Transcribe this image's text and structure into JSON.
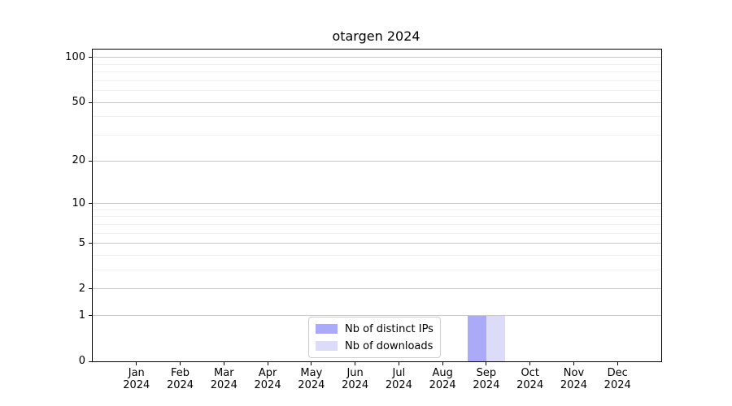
{
  "figure": {
    "background": "#ffffff"
  },
  "chart_data": {
    "type": "bar",
    "title": "otargen 2024",
    "x_categories": [
      {
        "month": "Jan",
        "year": "2024"
      },
      {
        "month": "Feb",
        "year": "2024"
      },
      {
        "month": "Mar",
        "year": "2024"
      },
      {
        "month": "Apr",
        "year": "2024"
      },
      {
        "month": "May",
        "year": "2024"
      },
      {
        "month": "Jun",
        "year": "2024"
      },
      {
        "month": "Jul",
        "year": "2024"
      },
      {
        "month": "Aug",
        "year": "2024"
      },
      {
        "month": "Sep",
        "year": "2024"
      },
      {
        "month": "Oct",
        "year": "2024"
      },
      {
        "month": "Nov",
        "year": "2024"
      },
      {
        "month": "Dec",
        "year": "2024"
      }
    ],
    "series": [
      {
        "name": "Nb of distinct IPs",
        "color": "#aaaaf8",
        "values": [
          0,
          0,
          0,
          0,
          0,
          0,
          0,
          0,
          1,
          0,
          0,
          0
        ]
      },
      {
        "name": "Nb of downloads",
        "color": "#dcdcf8",
        "values": [
          0,
          0,
          0,
          0,
          0,
          0,
          0,
          0,
          1,
          0,
          0,
          0
        ]
      }
    ],
    "y_scale": "log1p",
    "ylim": [
      0,
      113
    ],
    "xlim": [
      -1,
      12
    ],
    "y_major_ticks": [
      0,
      1,
      2,
      5,
      10,
      20,
      50,
      100
    ],
    "y_minor_gridlines": [
      3,
      4,
      6,
      7,
      8,
      9,
      30,
      40,
      60,
      70,
      80,
      90
    ],
    "bar_width_fraction": 0.42,
    "grid": {
      "major_color": "#c9c9c9",
      "minor_color": "#efefef"
    },
    "axes": {
      "spine_color": "#000000",
      "tick_color": "#000000",
      "label_color": "#000000"
    },
    "legend": {
      "position": "lower center"
    }
  }
}
